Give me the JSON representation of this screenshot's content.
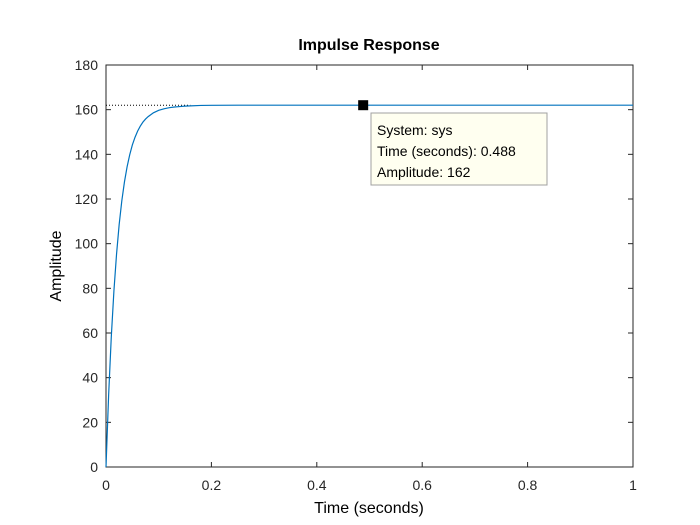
{
  "chart_data": {
    "type": "line",
    "title": "Impulse Response",
    "xlabel": "Time (seconds)",
    "ylabel": "Amplitude",
    "xlim": [
      0,
      1
    ],
    "ylim": [
      0,
      180
    ],
    "xticks": [
      0,
      0.2,
      0.4,
      0.6,
      0.8,
      1
    ],
    "xtick_labels": [
      "0",
      "0.2",
      "0.4",
      "0.6",
      "0.8",
      "1"
    ],
    "yticks": [
      0,
      20,
      40,
      60,
      80,
      100,
      120,
      140,
      160,
      180
    ],
    "ytick_labels": [
      "0",
      "20",
      "40",
      "60",
      "80",
      "100",
      "120",
      "140",
      "160",
      "180"
    ],
    "grid": false,
    "series": [
      {
        "color": "#0072BD",
        "x": [
          0,
          0.005,
          0.01,
          0.015,
          0.02,
          0.025,
          0.03,
          0.035,
          0.04,
          0.045,
          0.05,
          0.055,
          0.06,
          0.065,
          0.07,
          0.075,
          0.08,
          0.09,
          0.1,
          0.11,
          0.12,
          0.13,
          0.14,
          0.15,
          0.16,
          0.18,
          0.2,
          0.25,
          0.3,
          0.4,
          0.488,
          0.6,
          0.8,
          1.0
        ],
        "y": [
          0,
          32.3,
          58.1,
          78.8,
          95.3,
          108.6,
          119.2,
          127.6,
          134.4,
          139.8,
          144.2,
          147.6,
          150.4,
          152.6,
          154.4,
          155.8,
          156.9,
          158.6,
          159.7,
          160.4,
          160.9,
          161.2,
          161.4,
          161.6,
          161.7,
          161.9,
          161.95,
          162,
          162,
          162,
          162,
          162,
          162,
          162
        ]
      }
    ],
    "reference_line": {
      "y": 162,
      "style": "dotted",
      "from_x": 0
    },
    "datatip": {
      "x": 0.488,
      "y": 162,
      "lines": [
        "System: sys",
        "Time (seconds): 0.488",
        "Amplitude: 162"
      ],
      "background": "#FFFFF0",
      "border": "#A0A0A0"
    },
    "colors": {
      "axis": "#262626",
      "line": "#0072BD",
      "marker": "#000000"
    }
  }
}
